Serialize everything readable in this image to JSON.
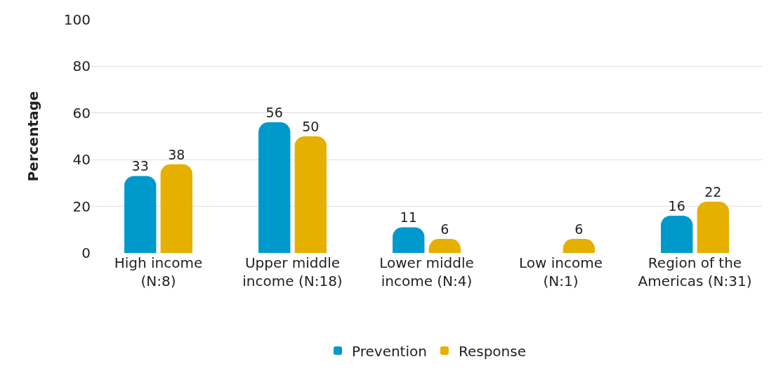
{
  "chart_data": {
    "type": "bar",
    "ylabel": "Percentage",
    "categories": [
      "High income\n(N:8)",
      "Upper middle\nincome (N:18)",
      "Lower middle\nincome (N:4)",
      "Low income\n(N:1)",
      "Region of the\nAmericas (N:31)"
    ],
    "series": [
      {
        "name": "Prevention",
        "color": "#0099cc",
        "values": [
          33,
          56,
          11,
          0,
          16
        ],
        "value_labels": [
          "33",
          "56",
          "11",
          null,
          "16"
        ]
      },
      {
        "name": "Response",
        "color": "#e6b000",
        "values": [
          38,
          50,
          6,
          6,
          22
        ],
        "value_labels": [
          "38",
          "50",
          "6",
          "6",
          "22"
        ]
      }
    ],
    "ylim": [
      0,
      100
    ],
    "yticks": [
      0,
      20,
      40,
      60,
      80,
      100
    ],
    "grid": "y",
    "legend": "bottom"
  }
}
